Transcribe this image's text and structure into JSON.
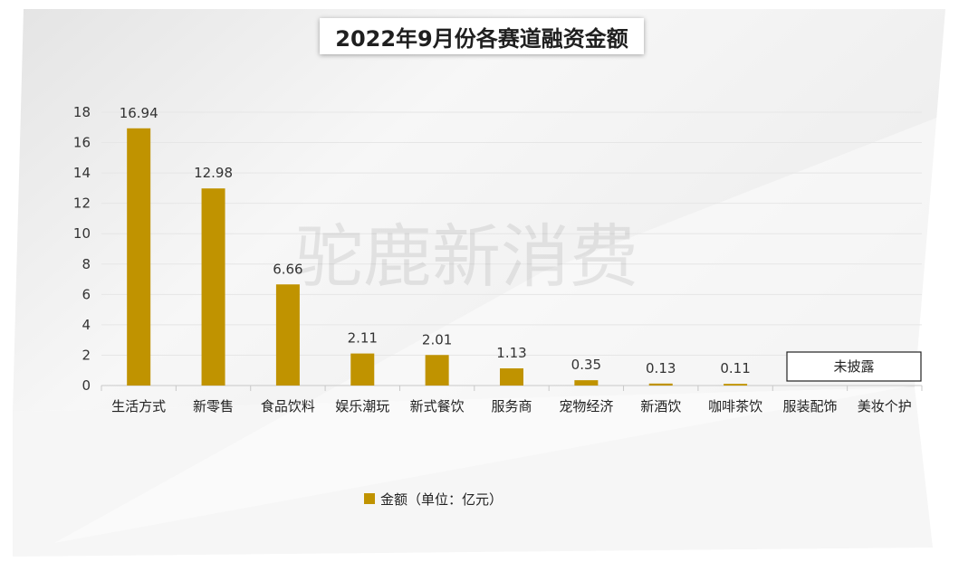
{
  "title": "2022年9月份各赛道融资金额",
  "watermark": "驼鹿新消费",
  "colors": {
    "bar": "#c09300"
  },
  "chart_data": {
    "type": "bar",
    "title": "2022年9月份各赛道融资金额",
    "xlabel": "",
    "ylabel": "",
    "ylim": [
      0,
      18
    ],
    "yticks": [
      0,
      2,
      4,
      6,
      8,
      10,
      12,
      14,
      16,
      18
    ],
    "grid": true,
    "categories": [
      "生活方式",
      "新零售",
      "食品饮料",
      "娱乐潮玩",
      "新式餐饮",
      "服务商",
      "宠物经济",
      "新酒饮",
      "咖啡茶饮",
      "服装配饰",
      "美妆个护"
    ],
    "series": [
      {
        "name": "金额（单位：亿元）",
        "values": [
          16.94,
          12.98,
          6.66,
          2.11,
          2.01,
          1.13,
          0.35,
          0.13,
          0.11,
          null,
          null
        ],
        "labels": [
          "16.94",
          "12.98",
          "6.66",
          "2.11",
          "2.01",
          "1.13",
          "0.35",
          "0.13",
          "0.11",
          "",
          ""
        ]
      }
    ],
    "legend_position": "bottom",
    "annotation": "未披露"
  }
}
